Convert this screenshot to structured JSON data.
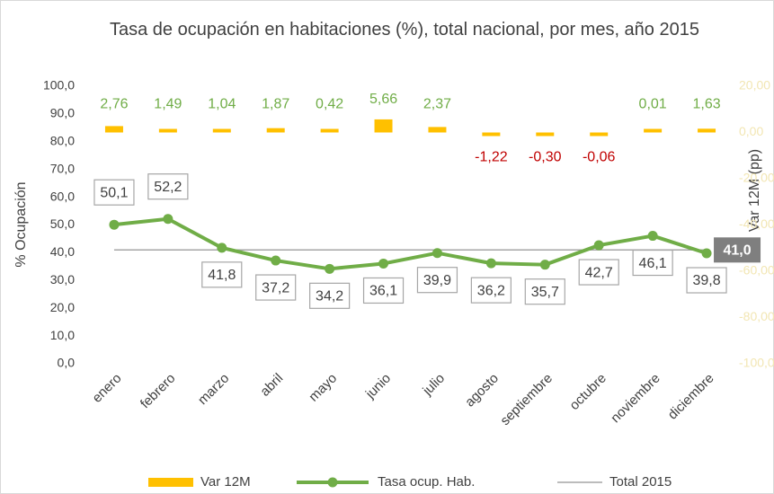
{
  "chart_data": {
    "type": "combo",
    "title": "Tasa de ocupación en habitaciones (%), total nacional, por mes, año 2015",
    "y_label": "% Ocupación",
    "y2_label": "Var 12M (pp)",
    "categories": [
      "enero",
      "febrero",
      "marzo",
      "abril",
      "mayo",
      "junio",
      "julio",
      "agosto",
      "septiembre",
      "octubre",
      "noviembre",
      "diciembre"
    ],
    "series": [
      {
        "name": "Var 12M",
        "type": "bar",
        "axis": "y2",
        "color": "#ffc000",
        "values": [
          2.76,
          1.49,
          1.04,
          1.87,
          0.42,
          5.66,
          2.37,
          -1.22,
          -0.3,
          -0.06,
          0.01,
          1.63
        ],
        "value_labels": [
          "2,76",
          "1,49",
          "1,04",
          "1,87",
          "0,42",
          "5,66",
          "2,37",
          "-1,22",
          "-0,30",
          "-0,06",
          "0,01",
          "1,63"
        ]
      },
      {
        "name": "Tasa ocup. Hab.",
        "type": "line",
        "color": "#70ad47",
        "values": [
          50.1,
          52.2,
          41.8,
          37.2,
          34.2,
          36.1,
          39.9,
          36.2,
          35.7,
          42.7,
          46.1,
          39.8
        ],
        "value_labels": [
          "50,1",
          "52,2",
          "41,8",
          "37,2",
          "34,2",
          "36,1",
          "39,9",
          "36,2",
          "35,7",
          "42,7",
          "46,1",
          "39,8"
        ]
      }
    ],
    "reference_line": {
      "name": "Total 2015",
      "value": 41.0,
      "label": "41,0",
      "color": "#a6a6a6"
    },
    "label_colors": {
      "positive": "#70ad47",
      "negative": "#c00000"
    },
    "ylim": [
      0,
      100
    ],
    "yticks": [
      {
        "value": 0,
        "label": "0,0"
      },
      {
        "value": 10,
        "label": "10,0"
      },
      {
        "value": 20,
        "label": "20,0"
      },
      {
        "value": 30,
        "label": "30,0"
      },
      {
        "value": 40,
        "label": "40,0"
      },
      {
        "value": 50,
        "label": "50,0"
      },
      {
        "value": 60,
        "label": "60,0"
      },
      {
        "value": 70,
        "label": "70,0"
      },
      {
        "value": 80,
        "label": "80,0"
      },
      {
        "value": 90,
        "label": "90,0"
      },
      {
        "value": 100,
        "label": "100,0"
      }
    ],
    "y2lim": [
      -100,
      20
    ],
    "y2ticks": [
      {
        "value": -100,
        "label": "-100,00"
      },
      {
        "value": -80,
        "label": "-80,00"
      },
      {
        "value": -60,
        "label": "-60,00"
      },
      {
        "value": -40,
        "label": "-40,00"
      },
      {
        "value": -20,
        "label": "-20,00"
      },
      {
        "value": 0,
        "label": "0,00"
      },
      {
        "value": 20,
        "label": "20,00"
      }
    ],
    "y2tick_color": "#f2e6b3",
    "legend": "bottom"
  }
}
